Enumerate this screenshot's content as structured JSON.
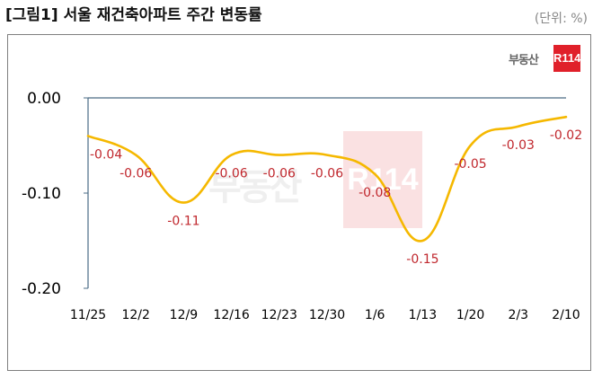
{
  "title": "[그림1] 서울 재건축아파트 주간 변동률",
  "unit": "(단위: %)",
  "logo": {
    "text": "부동산",
    "box": "R114"
  },
  "colors": {
    "line": "#f5b800",
    "label": "#c0272d",
    "axis": "#4a6b85"
  },
  "chart_data": {
    "type": "line",
    "categories": [
      "11/25",
      "12/2",
      "12/9",
      "12/16",
      "12/23",
      "12/30",
      "1/6",
      "1/13",
      "1/20",
      "2/3",
      "2/10"
    ],
    "values": [
      -0.04,
      -0.06,
      -0.11,
      -0.06,
      -0.06,
      -0.06,
      -0.08,
      -0.15,
      -0.05,
      -0.03,
      -0.02
    ],
    "data_labels": [
      "-0.04",
      "-0.06",
      "-0.11",
      "-0.06",
      "-0.06",
      "-0.06",
      "-0.08",
      "-0.15",
      "-0.05",
      "-0.03",
      "-0.02"
    ],
    "yticks": [
      "0.00",
      "-0.10",
      "-0.20"
    ],
    "ytick_values": [
      0,
      -0.1,
      -0.2
    ],
    "ylim": [
      -0.2,
      0
    ],
    "grid": false,
    "smooth": true
  }
}
